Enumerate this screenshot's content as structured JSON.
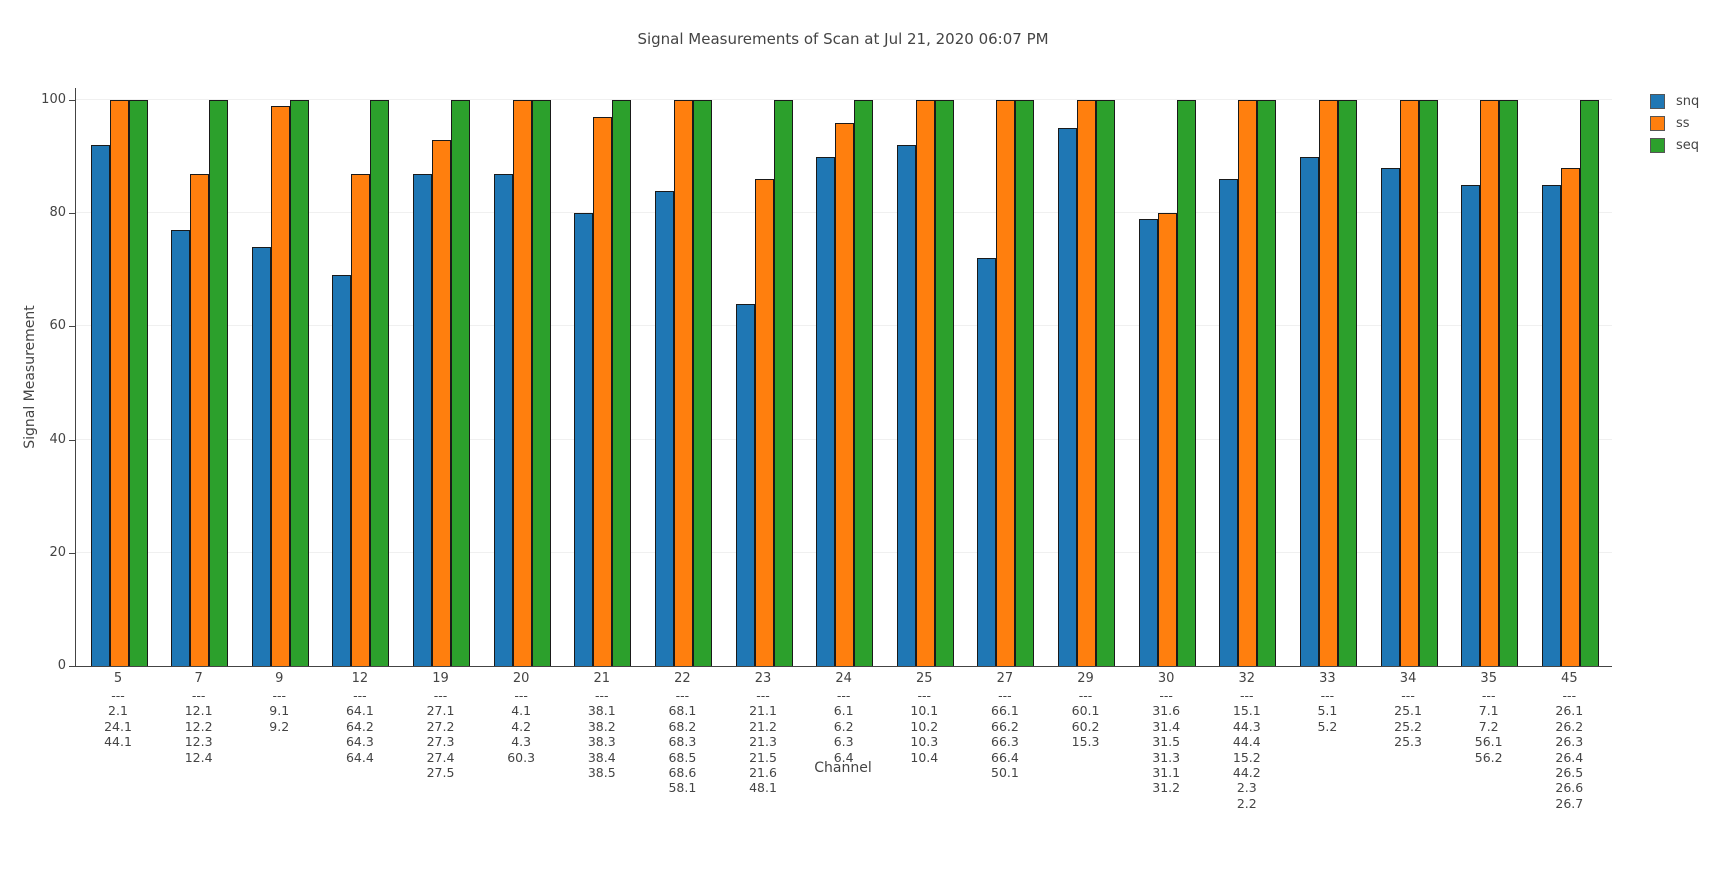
{
  "chart_data": {
    "type": "bar",
    "title": "Signal Measurements of Scan at Jul 21, 2020 06:07 PM",
    "xlabel": "Channel",
    "ylabel": "Signal Measurement",
    "ylim": [
      0,
      100
    ],
    "yticks": [
      0,
      20,
      40,
      60,
      80,
      100
    ],
    "grid": true,
    "legend_position": "top-right",
    "legend_entries": [
      "snq",
      "ss",
      "seq"
    ],
    "categories": [
      "5",
      "7",
      "9",
      "12",
      "19",
      "20",
      "21",
      "22",
      "23",
      "24",
      "25",
      "27",
      "29",
      "30",
      "32",
      "33",
      "34",
      "35",
      "45"
    ],
    "category_sublabels": [
      [
        "---",
        "2.1",
        "24.1",
        "44.1"
      ],
      [
        "---",
        "12.1",
        "12.2",
        "12.3",
        "12.4"
      ],
      [
        "---",
        "9.1",
        "9.2"
      ],
      [
        "---",
        "64.1",
        "64.2",
        "64.3",
        "64.4"
      ],
      [
        "---",
        "27.1",
        "27.2",
        "27.3",
        "27.4",
        "27.5"
      ],
      [
        "---",
        "4.1",
        "4.2",
        "4.3",
        "60.3"
      ],
      [
        "---",
        "38.1",
        "38.2",
        "38.3",
        "38.4",
        "38.5"
      ],
      [
        "---",
        "68.1",
        "68.2",
        "68.3",
        "68.5",
        "68.6",
        "58.1"
      ],
      [
        "---",
        "21.1",
        "21.2",
        "21.3",
        "21.5",
        "21.6",
        "48.1"
      ],
      [
        "---",
        "6.1",
        "6.2",
        "6.3",
        "6.4"
      ],
      [
        "---",
        "10.1",
        "10.2",
        "10.3",
        "10.4"
      ],
      [
        "---",
        "66.1",
        "66.2",
        "66.3",
        "66.4",
        "50.1"
      ],
      [
        "---",
        "60.1",
        "60.2",
        "15.3"
      ],
      [
        "---",
        "31.6",
        "31.4",
        "31.5",
        "31.3",
        "31.1",
        "31.2"
      ],
      [
        "---",
        "15.1",
        "44.3",
        "44.4",
        "15.2",
        "44.2",
        "2.3",
        "2.2"
      ],
      [
        "---",
        "5.1",
        "5.2"
      ],
      [
        "---",
        "25.1",
        "25.2",
        "25.3"
      ],
      [
        "---",
        "7.1",
        "7.2",
        "56.1",
        "56.2"
      ],
      [
        "---",
        "26.1",
        "26.2",
        "26.3",
        "26.4",
        "26.5",
        "26.6",
        "26.7"
      ]
    ],
    "series": [
      {
        "name": "snq",
        "color": "#1f77b4",
        "values": [
          92,
          77,
          74,
          69,
          87,
          87,
          80,
          84,
          64,
          90,
          92,
          72,
          95,
          79,
          86,
          90,
          88,
          85,
          85
        ]
      },
      {
        "name": "ss",
        "color": "#ff7f0e",
        "values": [
          100,
          87,
          99,
          87,
          93,
          100,
          97,
          100,
          86,
          96,
          100,
          100,
          100,
          80,
          100,
          100,
          100,
          100,
          88
        ]
      },
      {
        "name": "seq",
        "color": "#2ca02c",
        "values": [
          100,
          100,
          100,
          100,
          100,
          100,
          100,
          100,
          100,
          100,
          100,
          100,
          100,
          100,
          100,
          100,
          100,
          100,
          100
        ]
      }
    ],
    "colors": {
      "bar_edge": "#1a1a1a",
      "text": "#444444",
      "grid": "#f0f0f0",
      "axis_line": "#444444"
    }
  }
}
